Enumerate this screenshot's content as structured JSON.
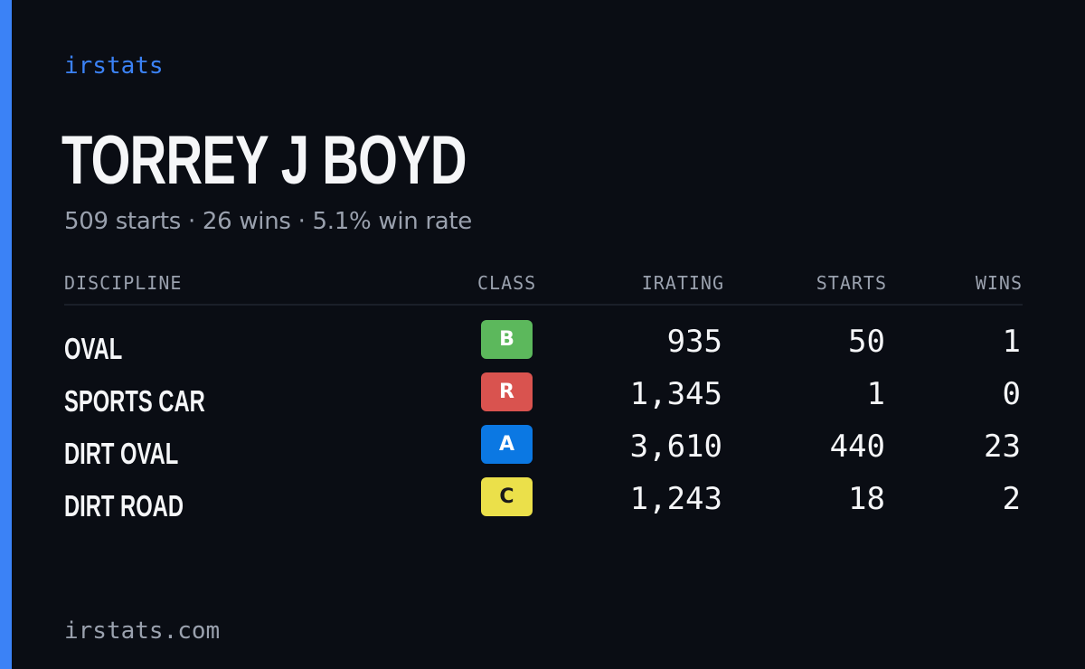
{
  "brand": "irstats",
  "driver": {
    "name": "TORREY J BOYD",
    "summary": "509 starts · 26 wins · 5.1% win rate"
  },
  "table": {
    "headers": {
      "discipline": "DISCIPLINE",
      "class": "CLASS",
      "irating": "IRATING",
      "starts": "STARTS",
      "wins": "WINS"
    },
    "rows": [
      {
        "discipline": "OVAL",
        "class": "B",
        "class_color": "#5cb85c",
        "class_text_color": "#ffffff",
        "irating": "935",
        "starts": "50",
        "wins": "1"
      },
      {
        "discipline": "SPORTS CAR",
        "class": "R",
        "class_color": "#d9534f",
        "class_text_color": "#ffffff",
        "irating": "1,345",
        "starts": "1",
        "wins": "0"
      },
      {
        "discipline": "DIRT OVAL",
        "class": "A",
        "class_color": "#0b78e3",
        "class_text_color": "#ffffff",
        "irating": "3,610",
        "starts": "440",
        "wins": "23"
      },
      {
        "discipline": "DIRT ROAD",
        "class": "C",
        "class_color": "#ebe04a",
        "class_text_color": "#1a1a1a",
        "irating": "1,243",
        "starts": "18",
        "wins": "2"
      }
    ]
  },
  "footer": "irstats.com",
  "colors": {
    "background": "#0a0d14",
    "accent": "#3b82f6",
    "text_primary": "#f5f6f8",
    "text_muted": "#9aa1ae"
  }
}
